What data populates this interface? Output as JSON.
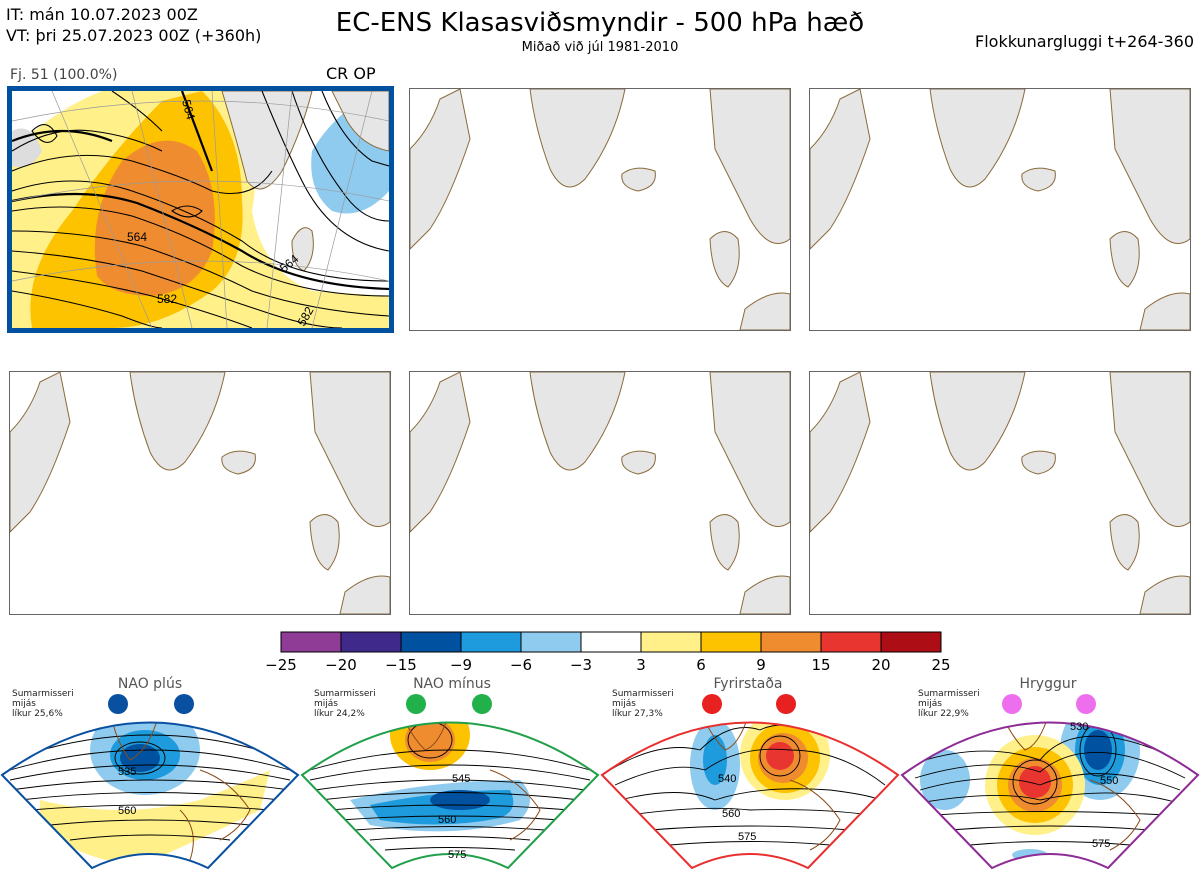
{
  "header": {
    "it_line": "IT: mán 10.07.2023 00Z",
    "vt_line": "VT: þri 25.07.2023 00Z  (+360h)",
    "title": "EC-ENS Klasasviðsmyndir - 500 hPa hæð",
    "subtitle": "Miðað við júl 1981-2010",
    "window": "Flokkunargluggi t+264-360"
  },
  "main_panel": {
    "cluster_label": "Fj. 51 (100.0%)",
    "regime": "CR OP",
    "contour_labels": [
      "564",
      "564",
      "582",
      "564",
      "582"
    ]
  },
  "colorbar": {
    "colors": [
      "#8e3c96",
      "#3f2a8c",
      "#0052a0",
      "#1e9bdc",
      "#8fcbef",
      "#ffffff",
      "#fff08a",
      "#fdc300",
      "#f08c30",
      "#e83530",
      "#ad0d14"
    ],
    "ticks": [
      "−25",
      "−20",
      "−15",
      "−9",
      "−6",
      "−3",
      "3",
      "6",
      "9",
      "15",
      "20",
      "25"
    ]
  },
  "regimes": [
    {
      "name": "NAO plús",
      "season": "Sumarmisseri",
      "dist": "mijás",
      "prob": "líkur 25,6%",
      "color": "#0a50a0",
      "dot": "#0a50a0",
      "labels": [
        "535",
        "560"
      ]
    },
    {
      "name": "NAO mínus",
      "season": "Sumarmisseri",
      "dist": "mijás",
      "prob": "líkur 24,2%",
      "color": "#21a04a",
      "dot": "#21b04a",
      "labels": [
        "545",
        "560",
        "575"
      ]
    },
    {
      "name": "Fyrirstaða",
      "season": "Sumarmisseri",
      "dist": "mijás",
      "prob": "líkur 27,3%",
      "color": "#e83030",
      "dot": "#e82020",
      "labels": [
        "540",
        "560",
        "575"
      ]
    },
    {
      "name": "Hryggur",
      "season": "Sumarmisseri",
      "dist": "mijás",
      "prob": "líkur 22,9%",
      "color": "#8e2c96",
      "dot": "#ee6fee",
      "labels": [
        "530",
        "550",
        "575"
      ]
    }
  ]
}
